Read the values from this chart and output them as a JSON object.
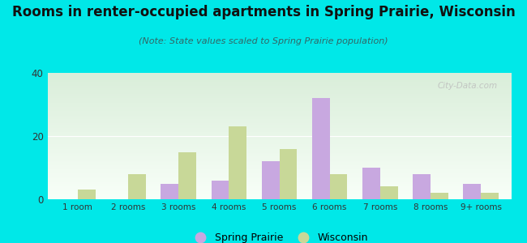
{
  "categories": [
    "1 room",
    "2 rooms",
    "3 rooms",
    "4 rooms",
    "5 rooms",
    "6 rooms",
    "7 rooms",
    "8 rooms",
    "9+ rooms"
  ],
  "spring_prairie": [
    0,
    0,
    5,
    6,
    12,
    32,
    10,
    8,
    5
  ],
  "wisconsin": [
    3,
    8,
    15,
    23,
    16,
    8,
    4,
    2,
    2
  ],
  "sp_color": "#c8a8e0",
  "wi_color": "#c8d898",
  "title": "Rooms in renter-occupied apartments in Spring Prairie, Wisconsin",
  "subtitle": "(Note: State values scaled to Spring Prairie population)",
  "title_fontsize": 12,
  "subtitle_fontsize": 8,
  "ylim": [
    0,
    40
  ],
  "yticks": [
    0,
    20,
    40
  ],
  "background_color": "#00e8e8",
  "bar_width": 0.35,
  "legend_sp": "Spring Prairie",
  "legend_wi": "Wisconsin",
  "watermark": "City-Data.com"
}
